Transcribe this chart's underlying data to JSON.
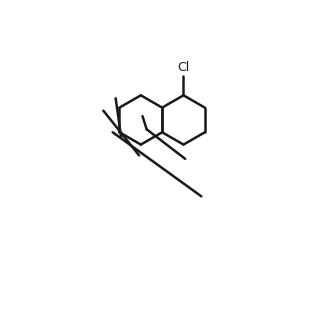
{
  "bg_color": "#ffffff",
  "line_color": "#1a1a1a",
  "line_width": 1.8,
  "text_color": "#1a1a1a",
  "font_size": 9,
  "figsize": [
    3.34,
    3.13
  ],
  "dpi": 100
}
